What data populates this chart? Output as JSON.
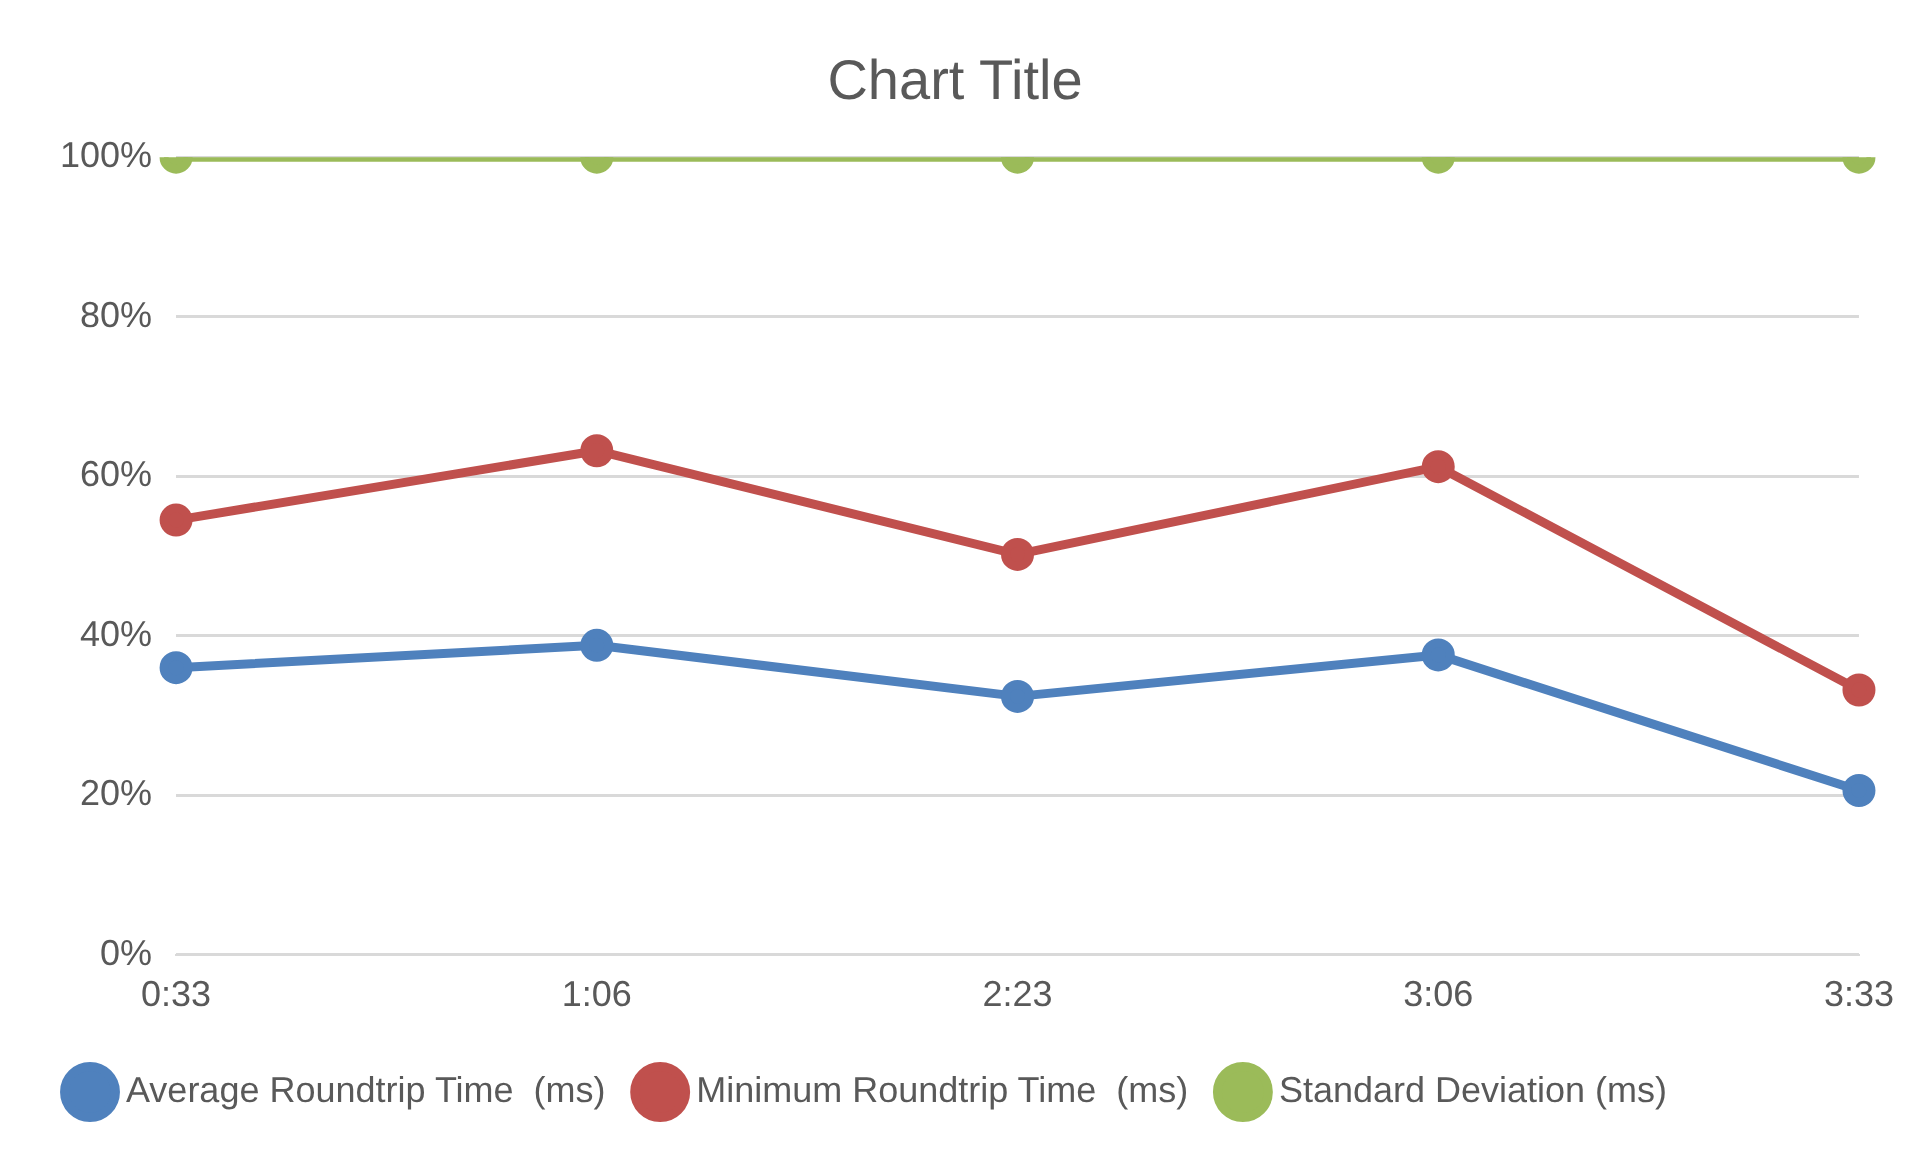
{
  "chart_data": {
    "type": "line",
    "title": "Chart Title",
    "categories": [
      "0:33",
      "1:06",
      "2:23",
      "3:06",
      "3:33"
    ],
    "series": [
      {
        "name": "Average Roundtrip Time  (ms)",
        "color": "#4f81bd",
        "values": [
          36,
          38.8,
          32.4,
          37.6,
          20.6
        ]
      },
      {
        "name": "Minimum Roundtrip Time  (ms)",
        "color": "#c0504d",
        "values": [
          54.5,
          63.2,
          50.2,
          61.2,
          33.2
        ]
      },
      {
        "name": "Standard Deviation (ms)",
        "color": "#9bbb59",
        "values": [
          100,
          100,
          100,
          100,
          100
        ]
      }
    ],
    "ylim": [
      0,
      100
    ],
    "yticks": [
      {
        "value": 0,
        "label": "0%"
      },
      {
        "value": 20,
        "label": "20%"
      },
      {
        "value": 40,
        "label": "40%"
      },
      {
        "value": 60,
        "label": "60%"
      },
      {
        "value": 80,
        "label": "80%"
      },
      {
        "value": 100,
        "label": "100%"
      }
    ],
    "grid": "y",
    "legend": "bottom",
    "marker": "circle",
    "line_style": "solid"
  }
}
